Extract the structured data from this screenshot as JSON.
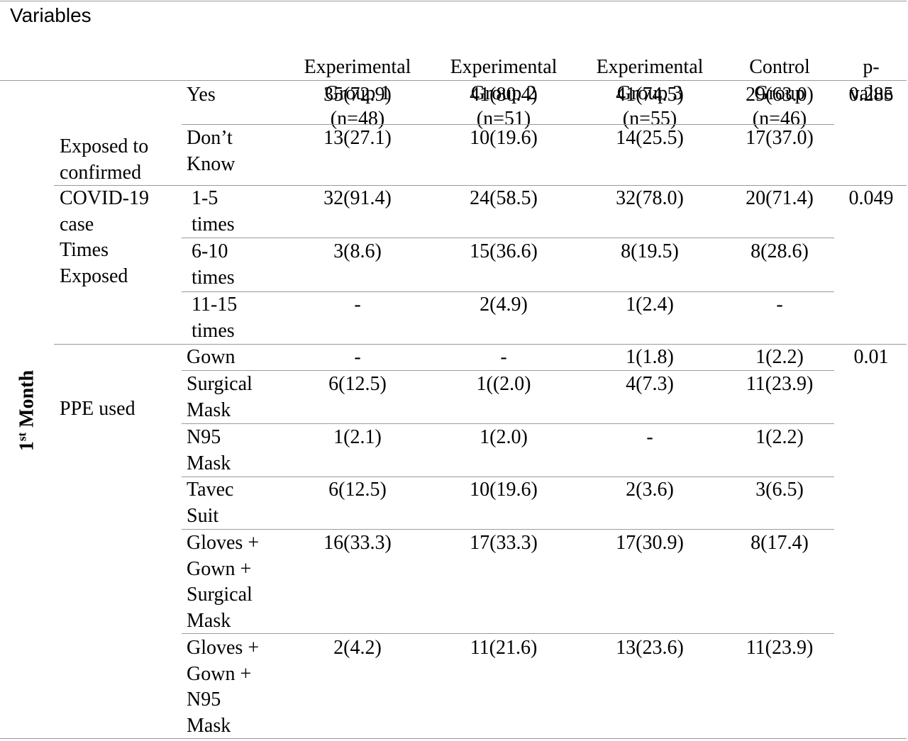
{
  "header": {
    "variables": "Variables",
    "eg1": [
      "Experimental",
      "Group 1",
      "(n=48)"
    ],
    "eg2": [
      "Experimental",
      "Group 2",
      "(n=51)"
    ],
    "eg3": [
      "Experimental",
      "Group 3",
      "(n=55)"
    ],
    "control": [
      "Control",
      "Group",
      "(n=46)"
    ],
    "pvalue": [
      "p-",
      "value"
    ]
  },
  "period": {
    "main": "1",
    "sup": "st",
    "rest": " Month"
  },
  "sections": [
    {
      "label": [
        "Exposed to",
        "confirmed",
        "COVID-19",
        "case"
      ],
      "p_value": "0.285",
      "rows": [
        {
          "label": [
            "Yes"
          ],
          "values": [
            "35(72.9)",
            "41(80.4)",
            "41(74.5)",
            "29(63.0)"
          ]
        },
        {
          "label": [
            "Don’t",
            "Know"
          ],
          "values": [
            "13(27.1)",
            "10(19.6)",
            "14(25.5)",
            "17(37.0)"
          ]
        }
      ]
    },
    {
      "label": [
        "Times",
        "Exposed"
      ],
      "p_value": "0.049",
      "rows": [
        {
          "label": [
            " 1-5",
            " times"
          ],
          "values": [
            "32(91.4)",
            "24(58.5)",
            "32(78.0)",
            "20(71.4)"
          ]
        },
        {
          "label": [
            " 6-10",
            " times"
          ],
          "values": [
            "3(8.6)",
            "15(36.6)",
            "8(19.5)",
            "8(28.6)"
          ]
        },
        {
          "label": [
            " 11-15",
            " times"
          ],
          "values": [
            "-",
            "2(4.9)",
            "1(2.4)",
            "-"
          ]
        }
      ]
    },
    {
      "label": [
        "PPE used"
      ],
      "p_value": "0.01",
      "rows": [
        {
          "label": [
            "Gown"
          ],
          "values": [
            "-",
            "-",
            "1(1.8)",
            "1(2.2)"
          ]
        },
        {
          "label": [
            "Surgical",
            "Mask"
          ],
          "values": [
            "6(12.5)",
            "1((2.0)",
            "4(7.3)",
            "11(23.9)"
          ]
        },
        {
          "label": [
            "N95",
            "Mask"
          ],
          "values": [
            "1(2.1)",
            "1(2.0)",
            "-",
            "1(2.2)"
          ]
        },
        {
          "label": [
            "Tavec",
            "Suit"
          ],
          "values": [
            "6(12.5)",
            "10(19.6)",
            "2(3.6)",
            "3(6.5)"
          ]
        },
        {
          "label": [
            "Gloves +",
            "Gown +",
            "Surgical",
            "Mask"
          ],
          "values": [
            "16(33.3)",
            "17(33.3)",
            "17(30.9)",
            "8(17.4)"
          ]
        },
        {
          "label": [
            "Gloves +",
            "Gown +",
            "N95",
            "Mask"
          ],
          "values": [
            "2(4.2)",
            "11(21.6)",
            "13(23.6)",
            "11(23.9)"
          ]
        }
      ]
    }
  ]
}
